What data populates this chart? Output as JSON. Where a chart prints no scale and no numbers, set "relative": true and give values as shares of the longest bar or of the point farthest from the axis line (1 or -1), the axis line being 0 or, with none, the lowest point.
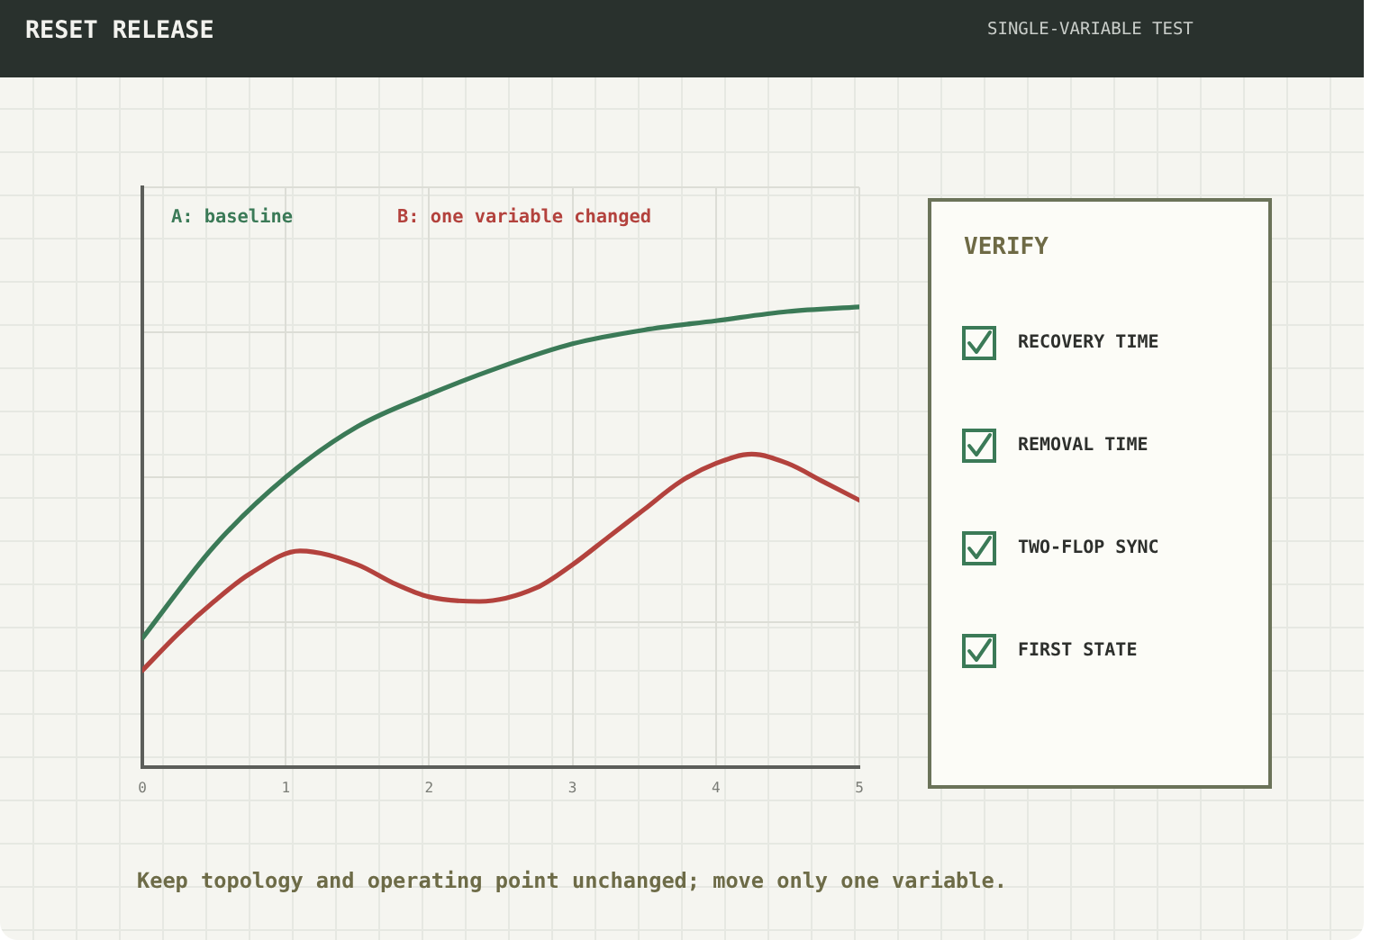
{
  "chart_data": [
    {
      "type": "line",
      "title": "RESET RELEASE",
      "annotations": [
        "Keep topology and operating point unchanged; move only one variable."
      ],
      "relative": true,
      "xlim": [
        0,
        5
      ],
      "xticks": [
        0,
        1,
        2,
        3,
        4,
        5
      ],
      "grid": true,
      "legend": "top left",
      "series": [
        {
          "name": "A: baseline",
          "color": "#3b7a57",
          "x": [
            0,
            0.5,
            1,
            1.5,
            2,
            2.5,
            3,
            3.5,
            4,
            4.5,
            5
          ],
          "values": [
            0.28,
            0.48,
            0.63,
            0.74,
            0.81,
            0.87,
            0.92,
            0.95,
            0.97,
            0.99,
            1
          ]
        },
        {
          "name": "B: one variable changed",
          "color": "#b3423d",
          "x": [
            0,
            0.25,
            0.5,
            0.75,
            1.1,
            1.5,
            1.75,
            2,
            2.35,
            2.75,
            3,
            3.25,
            3.5,
            3.75,
            4,
            4.25,
            4.5,
            4.75,
            5
          ],
          "values": [
            0.21,
            0.29,
            0.36,
            0.42,
            0.47,
            0.44,
            0.4,
            0.37,
            0.36,
            0.39,
            0.44,
            0.5,
            0.56,
            0.62,
            0.66,
            0.68,
            0.66,
            0.62,
            0.58
          ]
        }
      ]
    },
    {
      "type": "other",
      "title": "VERIFY",
      "subtitle": "SINGLE-VARIABLE TEST",
      "annotations": [
        "RECOVERY TIME",
        "REMOVAL TIME",
        "TWO-FLOP SYNC",
        "FIRST STATE"
      ]
    }
  ]
}
